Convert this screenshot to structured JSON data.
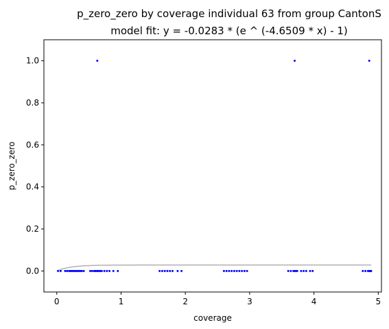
{
  "chart_data": {
    "type": "scatter",
    "title": "p_zero_zero by coverage individual 63 from group CantonS",
    "subtitle": "model fit: y = -0.0283 * (e ^ (-4.6509 * x) - 1)",
    "xlabel": "coverage",
    "ylabel": "p_zero_zero",
    "xlim": [
      -0.2,
      5.05
    ],
    "ylim": [
      -0.1,
      1.1
    ],
    "x_ticks": [
      0,
      1,
      2,
      3,
      4,
      5
    ],
    "y_ticks": [
      0.0,
      0.2,
      0.4,
      0.6,
      0.8,
      1.0
    ],
    "x_tick_labels": [
      "0",
      "1",
      "2",
      "3",
      "4",
      "5"
    ],
    "y_tick_labels": [
      "0.0",
      "0.2",
      "0.4",
      "0.6",
      "0.8",
      "1.0"
    ],
    "grid": false,
    "series": [
      {
        "type": "scatter",
        "color": "#0000ff",
        "x": [
          0.02,
          0.06,
          0.13,
          0.16,
          0.19,
          0.21,
          0.23,
          0.25,
          0.27,
          0.29,
          0.31,
          0.33,
          0.35,
          0.37,
          0.39,
          0.42,
          0.52,
          0.55,
          0.58,
          0.6,
          0.61,
          0.63,
          0.64,
          0.66,
          0.68,
          0.7,
          0.74,
          0.78,
          0.82,
          0.88,
          0.95,
          1.6,
          1.64,
          1.68,
          1.72,
          1.76,
          1.8,
          1.88,
          1.94,
          2.6,
          2.64,
          2.68,
          2.72,
          2.76,
          2.8,
          2.84,
          2.88,
          2.92,
          2.96,
          3.6,
          3.64,
          3.68,
          3.7,
          3.72,
          3.74,
          3.8,
          3.84,
          3.88,
          3.94,
          3.98,
          4.76,
          4.8,
          4.84,
          4.86,
          4.87,
          4.88,
          4.89,
          0.63,
          3.7,
          4.86
        ],
        "y": [
          0,
          0,
          0,
          0,
          0,
          0,
          0,
          0,
          0,
          0,
          0,
          0,
          0,
          0,
          0,
          0,
          0,
          0,
          0,
          0,
          0,
          0,
          0,
          0,
          0,
          0,
          0,
          0,
          0,
          0,
          0,
          0,
          0,
          0,
          0,
          0,
          0,
          0,
          0,
          0,
          0,
          0,
          0,
          0,
          0,
          0,
          0,
          0,
          0,
          0,
          0,
          0,
          0,
          0,
          0,
          0,
          0,
          0,
          0,
          0,
          0,
          0,
          0,
          0,
          0,
          0,
          0,
          1,
          1,
          1
        ]
      },
      {
        "type": "line",
        "color": "#b0b0b0",
        "function": "y = -0.0283 * (e ^ (-4.6509 * x) - 1)",
        "a": -0.0283,
        "b": -4.6509,
        "x_range": [
          0.0,
          4.89
        ]
      }
    ]
  }
}
